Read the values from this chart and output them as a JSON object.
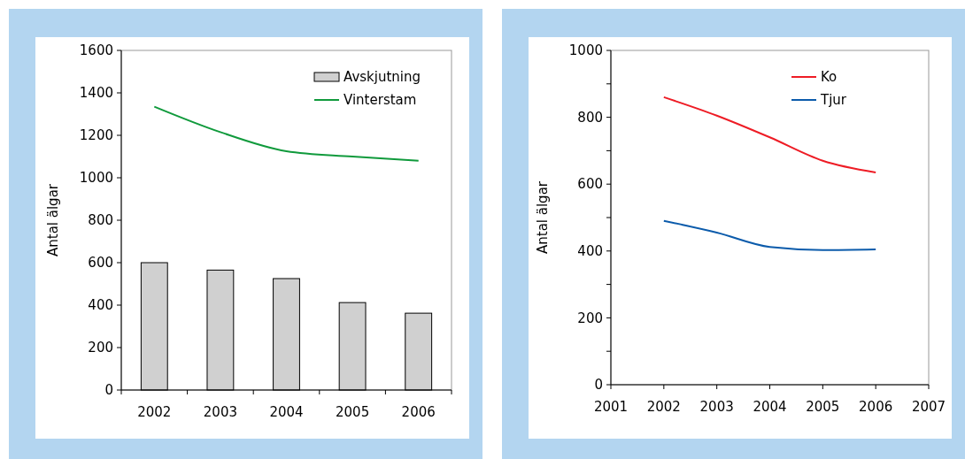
{
  "chart_data": [
    {
      "type": "bar",
      "categories": [
        "2002",
        "2003",
        "2004",
        "2005",
        "2006"
      ],
      "ylabel": "Antal älgar",
      "ylim": [
        0,
        1600
      ],
      "yticks": [
        0,
        200,
        400,
        600,
        800,
        1000,
        1200,
        1400,
        1600
      ],
      "legend": "top right",
      "grid": false,
      "series": [
        {
          "name": "Avskjutning",
          "color": "#d0d0d0",
          "values": [
            600,
            565,
            525,
            412,
            362
          ]
        },
        {
          "name": "Vinterstam",
          "type": "line",
          "color": "#109a3c",
          "values": [
            1335,
            1215,
            1125,
            1100,
            1080
          ]
        }
      ]
    },
    {
      "type": "line",
      "x": [
        2002,
        2003,
        2004,
        2005,
        2006
      ],
      "ylabel": "Antal älgar",
      "xlim": [
        2001,
        2007
      ],
      "xticks": [
        2001,
        2002,
        2003,
        2004,
        2005,
        2006,
        2007
      ],
      "ylim": [
        0,
        1000
      ],
      "yticks": [
        0,
        {
          "value": 100,
          "label": null
        },
        200,
        {
          "value": 300,
          "label": null
        },
        400,
        {
          "value": 500,
          "label": null
        },
        600,
        {
          "value": 700,
          "label": null
        },
        800,
        {
          "value": 900,
          "label": null
        },
        1000
      ],
      "legend": "top right",
      "grid": false,
      "marker": "none",
      "series": [
        {
          "name": "Ko",
          "color": "#ee1c25",
          "values": [
            860,
            805,
            740,
            670,
            635
          ]
        },
        {
          "name": "Tjur",
          "color": "#0b5bab",
          "values": [
            490,
            455,
            412,
            403,
            405
          ]
        }
      ]
    }
  ]
}
